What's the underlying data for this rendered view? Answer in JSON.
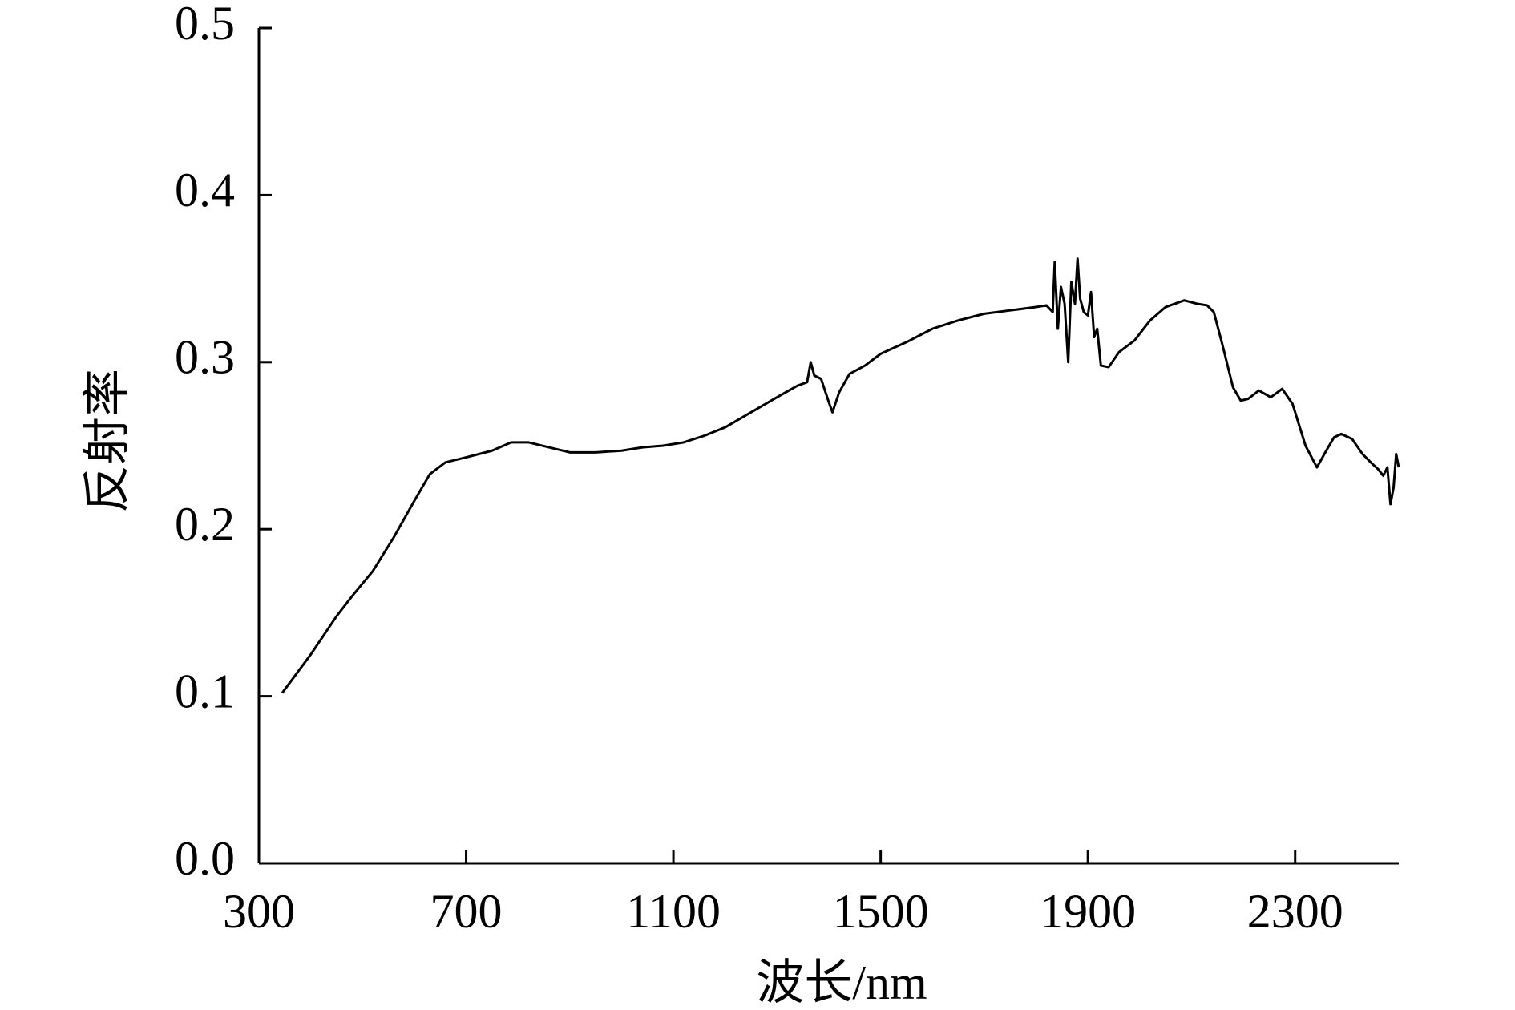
{
  "chart_data": {
    "type": "line",
    "x_label": "波长/nm",
    "y_label": "反射率",
    "x": [
      345,
      400,
      450,
      480,
      520,
      560,
      600,
      630,
      660,
      700,
      750,
      787,
      820,
      860,
      900,
      950,
      1000,
      1040,
      1080,
      1120,
      1160,
      1200,
      1250,
      1300,
      1340,
      1358,
      1365,
      1372,
      1385,
      1400,
      1407,
      1420,
      1440,
      1470,
      1500,
      1550,
      1600,
      1650,
      1700,
      1750,
      1800,
      1820,
      1832,
      1836,
      1842,
      1848,
      1855,
      1862,
      1868,
      1875,
      1880,
      1885,
      1892,
      1900,
      1906,
      1912,
      1918,
      1925,
      1940,
      1960,
      1990,
      2020,
      2050,
      2086,
      2110,
      2130,
      2143,
      2160,
      2180,
      2195,
      2209,
      2230,
      2253,
      2275,
      2295,
      2320,
      2342,
      2360,
      2375,
      2389,
      2410,
      2430,
      2446,
      2460,
      2470,
      2478,
      2484,
      2490,
      2495,
      2500
    ],
    "series": [
      {
        "color": "#000000",
        "values": [
          0.102,
          0.125,
          0.148,
          0.16,
          0.175,
          0.195,
          0.217,
          0.233,
          0.24,
          0.243,
          0.247,
          0.252,
          0.252,
          0.249,
          0.246,
          0.246,
          0.247,
          0.249,
          0.25,
          0.252,
          0.256,
          0.261,
          0.27,
          0.279,
          0.286,
          0.288,
          0.3,
          0.292,
          0.29,
          0.276,
          0.27,
          0.282,
          0.293,
          0.298,
          0.305,
          0.312,
          0.32,
          0.325,
          0.329,
          0.331,
          0.333,
          0.334,
          0.33,
          0.36,
          0.32,
          0.345,
          0.335,
          0.3,
          0.348,
          0.335,
          0.362,
          0.338,
          0.33,
          0.328,
          0.342,
          0.315,
          0.32,
          0.298,
          0.297,
          0.306,
          0.313,
          0.325,
          0.333,
          0.337,
          0.335,
          0.334,
          0.33,
          0.31,
          0.285,
          0.277,
          0.278,
          0.283,
          0.279,
          0.284,
          0.275,
          0.25,
          0.237,
          0.247,
          0.255,
          0.257,
          0.254,
          0.245,
          0.24,
          0.236,
          0.232,
          0.237,
          0.215,
          0.225,
          0.245,
          0.237
        ]
      }
    ],
    "xlim": [
      300,
      2500
    ],
    "xticks": [
      300,
      700,
      1100,
      1500,
      1900,
      2300
    ],
    "ylim": [
      0,
      0.5
    ],
    "yticks": [
      {
        "value": 0,
        "label": "0.0"
      },
      0.1,
      0.2,
      0.3,
      0.4,
      0.5
    ],
    "grid": false
  }
}
